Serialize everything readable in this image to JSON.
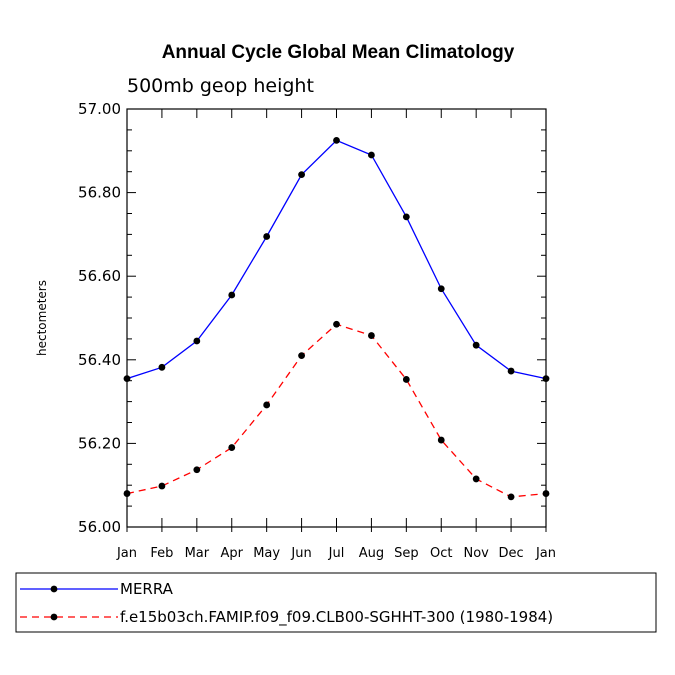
{
  "chart_data": {
    "type": "line",
    "title": "Annual Cycle Global Mean Climatology",
    "subtitle": "500mb geop height",
    "ylabel": "hectometers",
    "xlabel": "",
    "categories": [
      "Jan",
      "Feb",
      "Mar",
      "Apr",
      "May",
      "Jun",
      "Jul",
      "Aug",
      "Sep",
      "Oct",
      "Nov",
      "Dec",
      "Jan"
    ],
    "ylim": [
      56.0,
      57.0
    ],
    "yticks": [
      "56.00",
      "56.20",
      "56.40",
      "56.60",
      "56.80",
      "57.00"
    ],
    "legend_position": "bottom",
    "series": [
      {
        "name": "MERRA",
        "color": "#0000ff",
        "dash": "solid",
        "values": [
          56.355,
          56.382,
          56.445,
          56.555,
          56.695,
          56.843,
          56.925,
          56.89,
          56.742,
          56.57,
          56.435,
          56.373,
          56.355
        ]
      },
      {
        "name": "f.e15b03ch.FAMIP.f09_f09.CLB00-SGHHT-300 (1980-1984)",
        "color": "#ff0000",
        "dash": "dashed",
        "values": [
          56.08,
          56.098,
          56.137,
          56.19,
          56.292,
          56.41,
          56.485,
          56.458,
          56.353,
          56.208,
          56.115,
          56.072,
          56.08
        ]
      }
    ]
  }
}
